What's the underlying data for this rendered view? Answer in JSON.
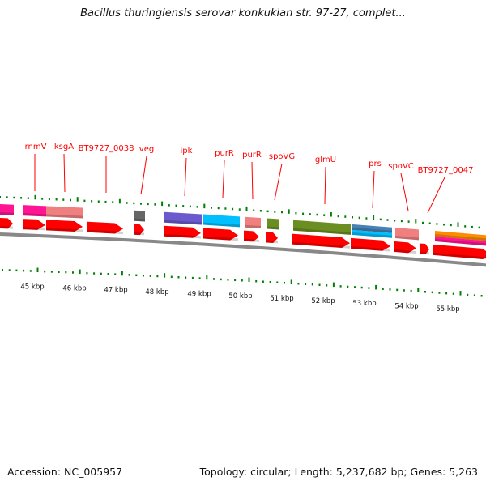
{
  "title": "Bacillus thuringiensis serovar konkukian str. 97-27, complet...",
  "footer": {
    "accession": "Accession: NC_005957",
    "summary": "Topology: circular; Length: 5,237,682 bp; Genes: 5,263"
  },
  "colors": {
    "label": "#ff0000",
    "tick": "#008000",
    "backbone": "#888888",
    "cds": "#ff0000"
  },
  "kbp_labels": [
    "45 kbp",
    "46 kbp",
    "47 kbp",
    "48 kbp",
    "49 kbp",
    "50 kbp",
    "51 kbp",
    "52 kbp",
    "53 kbp",
    "54 kbp",
    "55 kbp"
  ],
  "genes": [
    {
      "name": "rnmV"
    },
    {
      "name": "ksgA"
    },
    {
      "name": "BT9727_0038"
    },
    {
      "name": "veg"
    },
    {
      "name": "ipk"
    },
    {
      "name": "purR"
    },
    {
      "name": "purR"
    },
    {
      "name": "spoVG"
    },
    {
      "name": "glmU"
    },
    {
      "name": "prs"
    },
    {
      "name": "spoVC"
    },
    {
      "name": "BT9727_0047"
    }
  ]
}
